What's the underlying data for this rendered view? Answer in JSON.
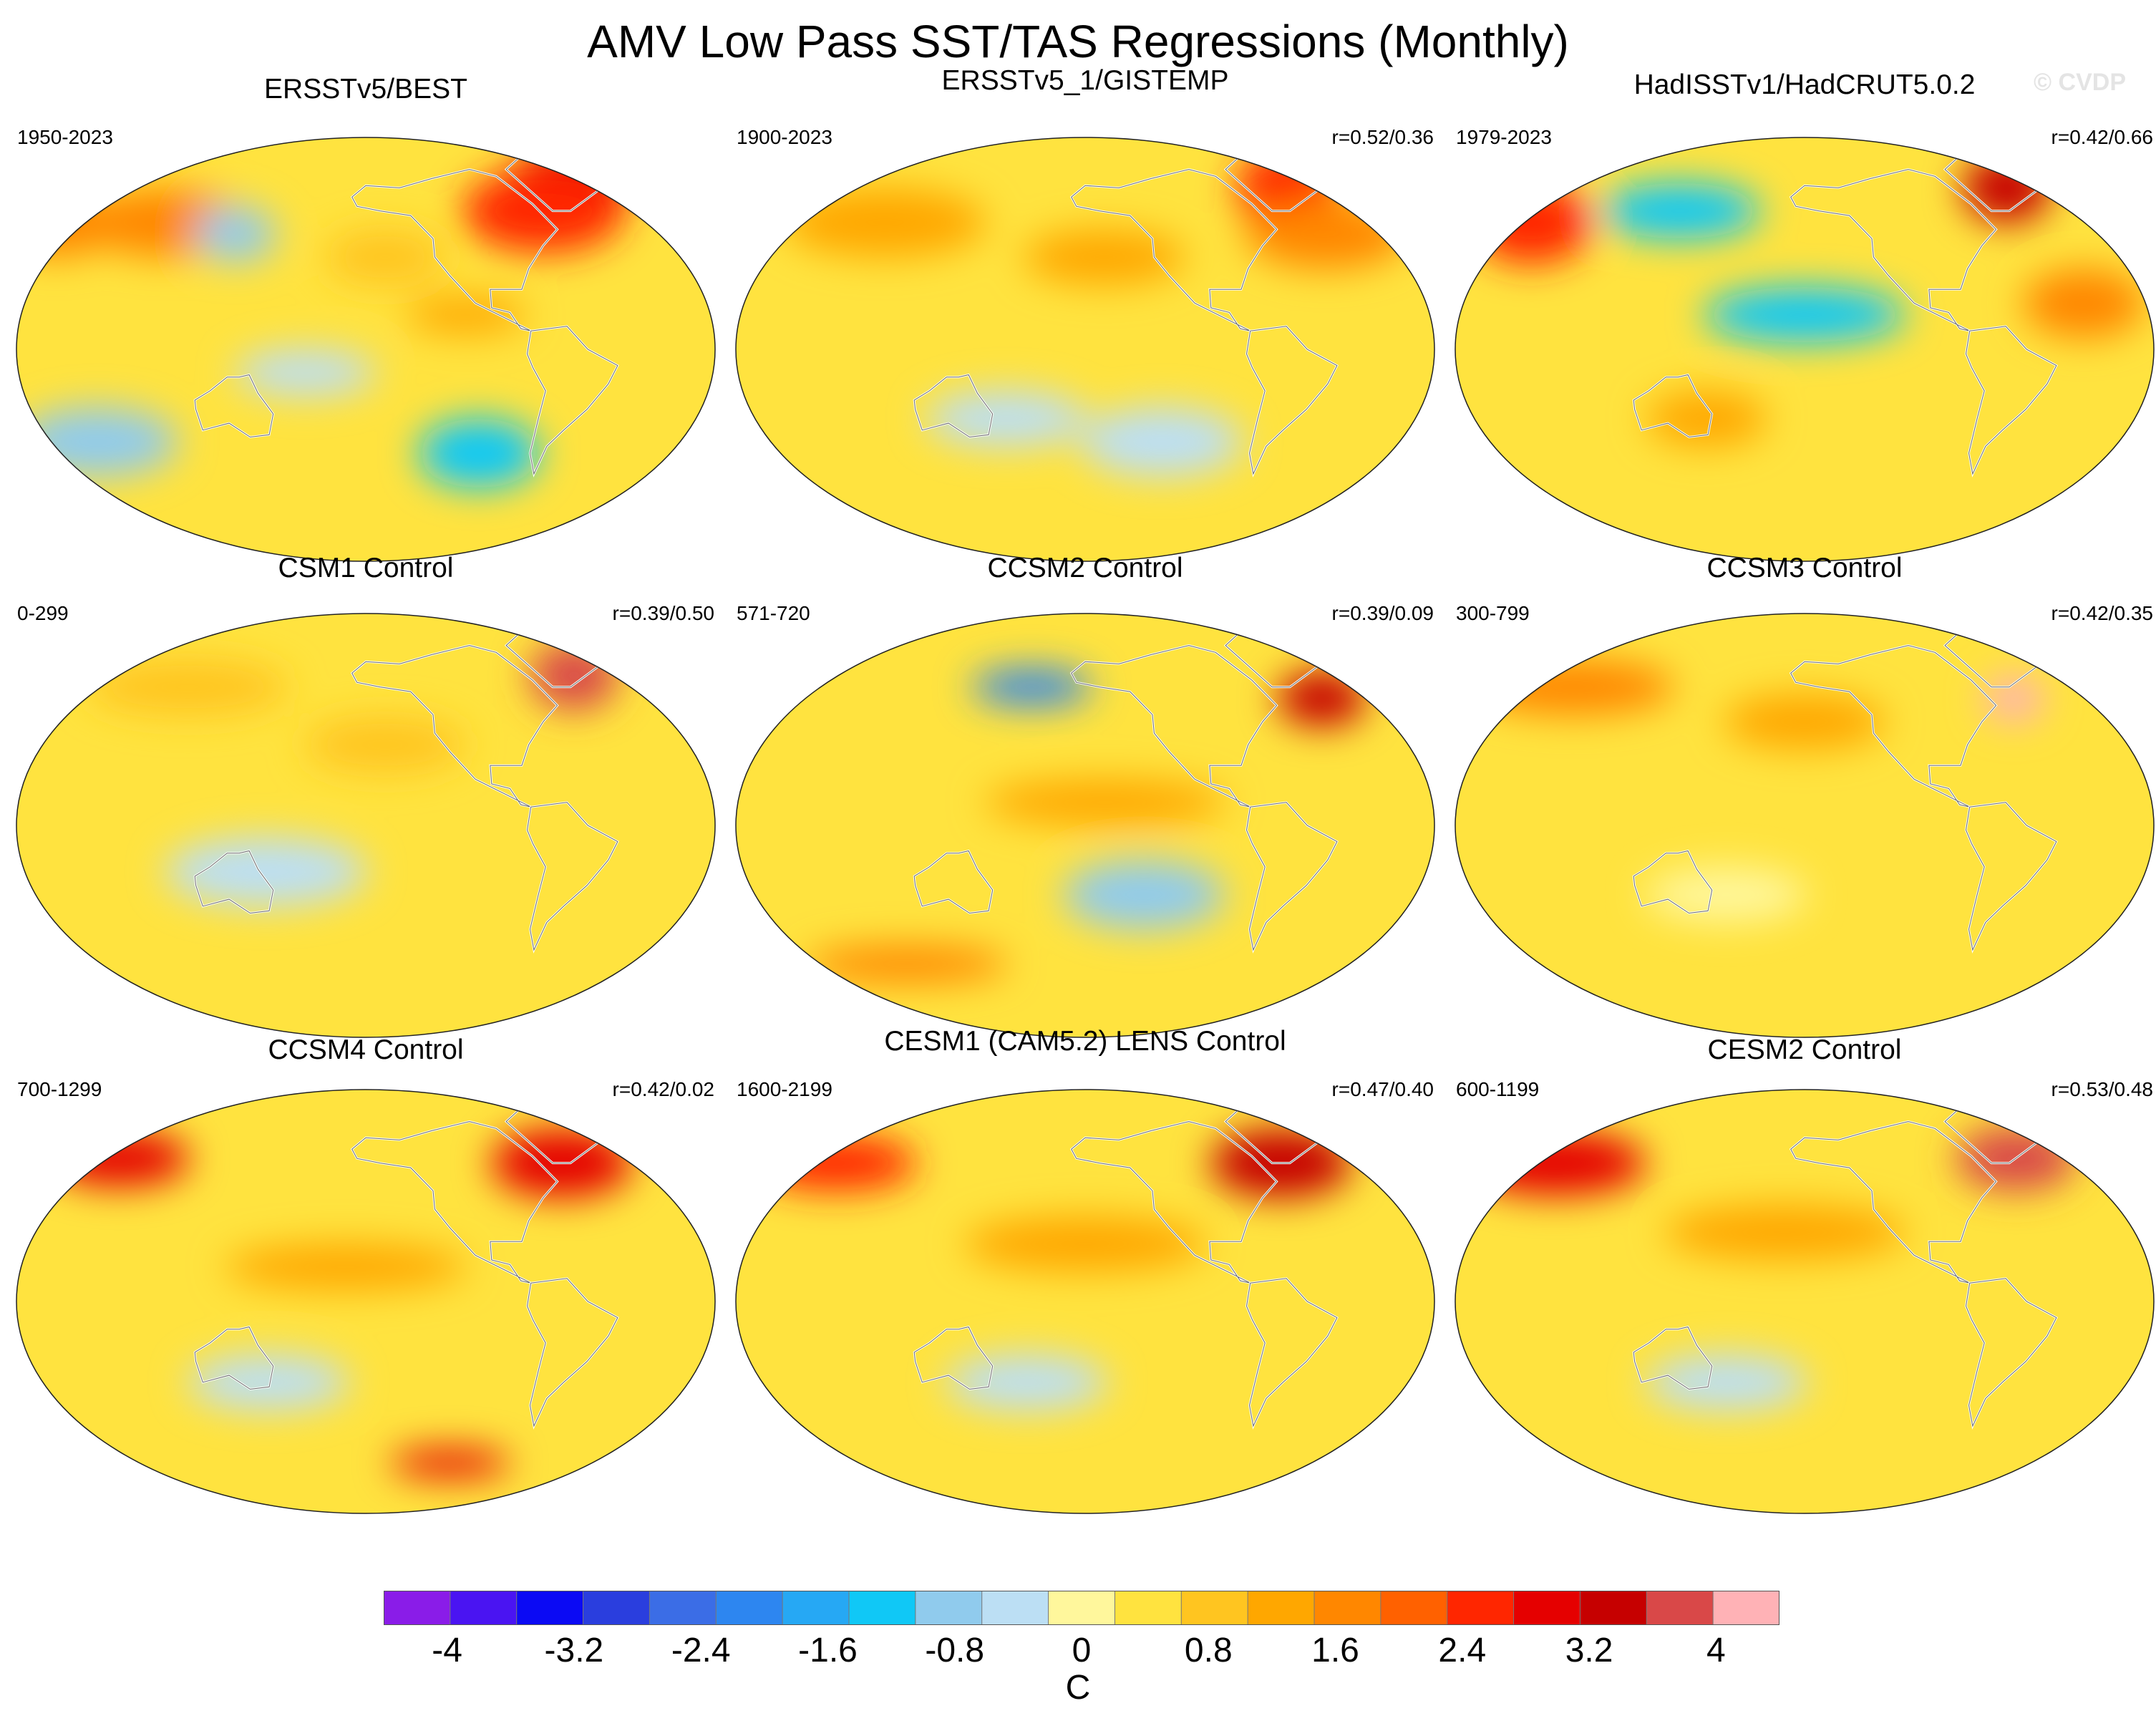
{
  "figure": {
    "title": "AMV Low Pass SST/TAS Regressions (Monthly)",
    "watermark": "© CVDP",
    "colorbar_units": "C"
  },
  "chart_data": {
    "type": "heatmap",
    "title": "AMV Low Pass SST/TAS Regressions (Monthly)",
    "projection": "Robinson (Pacific-centered)",
    "colorbar": {
      "units": "C",
      "levels": [
        -4.4,
        -4,
        -3.6,
        -3.2,
        -2.8,
        -2.4,
        -2,
        -1.6,
        -1.2,
        -0.8,
        -0.4,
        0,
        0.4,
        0.8,
        1.2,
        1.6,
        2,
        2.4,
        2.8,
        3.2,
        3.6,
        4,
        4.4
      ],
      "tick_labels": [
        "-4",
        "-3.2",
        "-2.4",
        "-1.6",
        "-0.8",
        "0",
        "0.8",
        "1.6",
        "2.4",
        "3.2",
        "4"
      ],
      "tick_values": [
        -4,
        -3.2,
        -2.4,
        -1.6,
        -0.8,
        0,
        0.8,
        1.6,
        2.4,
        3.2,
        4
      ],
      "colors": [
        "#8a1ce8",
        "#4a14f2",
        "#0b0af4",
        "#2a3ede",
        "#3b6de6",
        "#2d86f0",
        "#26a8f4",
        "#10c8f6",
        "#90cbed",
        "#bcdff4",
        "#fff79c",
        "#ffe33f",
        "#ffc520",
        "#ffa700",
        "#ff8700",
        "#ff6100",
        "#ff2600",
        "#e50000",
        "#c60000",
        "#d94848",
        "#ffb2b6"
      ]
    },
    "panels": [
      {
        "title": "ERSSTv5/BEST",
        "years": "1950-2023",
        "r": "",
        "features": [
          {
            "lon": -40,
            "lat": 70,
            "value": 2.6,
            "sx": 30,
            "sy": 20
          },
          {
            "lon": -60,
            "lat": 60,
            "value": 2.0,
            "sx": 40,
            "sy": 18
          },
          {
            "lon": 30,
            "lat": 55,
            "value": 1.4,
            "sx": 30,
            "sy": 15
          },
          {
            "lon": 90,
            "lat": 55,
            "value": 1.4,
            "sx": 40,
            "sy": 15
          },
          {
            "lon": 130,
            "lat": 50,
            "value": -0.9,
            "sx": 20,
            "sy": 12
          },
          {
            "lon": -150,
            "lat": 40,
            "value": 0.6,
            "sx": 30,
            "sy": 12
          },
          {
            "lon": -110,
            "lat": 15,
            "value": 0.9,
            "sx": 30,
            "sy": 8
          },
          {
            "lon": -100,
            "lat": -45,
            "value": -1.5,
            "sx": 30,
            "sy": 15
          },
          {
            "lon": 60,
            "lat": -40,
            "value": -1.2,
            "sx": 40,
            "sy": 15
          },
          {
            "lon": 170,
            "lat": -10,
            "value": -0.6,
            "sx": 35,
            "sy": 10
          }
        ]
      },
      {
        "title": "ERSSTv5_1/GISTEMP",
        "years": "1900-2023",
        "r": "r=0.52/0.36",
        "features": [
          {
            "lon": -40,
            "lat": 70,
            "value": 2.2,
            "sx": 25,
            "sy": 18
          },
          {
            "lon": -30,
            "lat": 50,
            "value": 1.2,
            "sx": 40,
            "sy": 15
          },
          {
            "lon": 90,
            "lat": 55,
            "value": 1.0,
            "sx": 50,
            "sy": 15
          },
          {
            "lon": -150,
            "lat": 40,
            "value": 0.8,
            "sx": 40,
            "sy": 12
          },
          {
            "lon": -120,
            "lat": -40,
            "value": -0.7,
            "sx": 40,
            "sy": 15
          },
          {
            "lon": 160,
            "lat": -30,
            "value": -0.5,
            "sx": 40,
            "sy": 12
          }
        ]
      },
      {
        "title": "HadISSTv1/HadCRUT5.0.2",
        "years": "1979-2023",
        "r": "r=0.42/0.66",
        "features": [
          {
            "lon": -40,
            "lat": 70,
            "value": 3.0,
            "sx": 22,
            "sy": 15
          },
          {
            "lon": 50,
            "lat": 55,
            "value": 2.2,
            "sx": 30,
            "sy": 18
          },
          {
            "lon": 130,
            "lat": 60,
            "value": -1.4,
            "sx": 40,
            "sy": 12
          },
          {
            "lon": -160,
            "lat": 15,
            "value": -1.3,
            "sx": 50,
            "sy": 12
          },
          {
            "lon": -20,
            "lat": 20,
            "value": 1.4,
            "sx": 30,
            "sy": 15
          },
          {
            "lon": 150,
            "lat": -30,
            "value": 0.8,
            "sx": 30,
            "sy": 12
          }
        ]
      },
      {
        "title": "CSM1 Control",
        "years": "0-299",
        "r": "r=0.39/0.50",
        "features": [
          {
            "lon": -40,
            "lat": 65,
            "value": 3.4,
            "sx": 22,
            "sy": 15
          },
          {
            "lon": -150,
            "lat": 35,
            "value": 0.6,
            "sx": 40,
            "sy": 12
          },
          {
            "lon": 150,
            "lat": -20,
            "value": -0.5,
            "sx": 50,
            "sy": 15
          },
          {
            "lon": 100,
            "lat": 60,
            "value": 0.5,
            "sx": 50,
            "sy": 12
          }
        ]
      },
      {
        "title": "CCSM2 Control",
        "years": "571-720",
        "r": "r=0.39/0.09",
        "features": [
          {
            "lon": -30,
            "lat": 55,
            "value": 3.0,
            "sx": 22,
            "sy": 12
          },
          {
            "lon": 170,
            "lat": 60,
            "value": -2.4,
            "sx": 30,
            "sy": 8
          },
          {
            "lon": -150,
            "lat": 10,
            "value": 0.9,
            "sx": 60,
            "sy": 10
          },
          {
            "lon": -130,
            "lat": -30,
            "value": -1.1,
            "sx": 40,
            "sy": 15
          },
          {
            "lon": 100,
            "lat": -60,
            "value": 1.2,
            "sx": 50,
            "sy": 8
          }
        ]
      },
      {
        "title": "CCSM3 Control",
        "years": "300-799",
        "r": "r=0.42/0.35",
        "features": [
          {
            "lon": -45,
            "lat": 55,
            "value": 3.6,
            "sx": 15,
            "sy": 10
          },
          {
            "lon": 70,
            "lat": 60,
            "value": 1.2,
            "sx": 50,
            "sy": 12
          },
          {
            "lon": -160,
            "lat": 45,
            "value": 0.9,
            "sx": 40,
            "sy": 12
          },
          {
            "lon": 160,
            "lat": -30,
            "value": -0.4,
            "sx": 40,
            "sy": 12
          }
        ]
      },
      {
        "title": "CCSM4 Control",
        "years": "700-1299",
        "r": "r=0.42/0.02",
        "features": [
          {
            "lon": -50,
            "lat": 60,
            "value": 2.6,
            "sx": 35,
            "sy": 15
          },
          {
            "lon": 60,
            "lat": 62,
            "value": 2.6,
            "sx": 35,
            "sy": 12
          },
          {
            "lon": -170,
            "lat": 15,
            "value": 1.0,
            "sx": 60,
            "sy": 10
          },
          {
            "lon": 150,
            "lat": -35,
            "value": -0.6,
            "sx": 40,
            "sy": 12
          },
          {
            "lon": -110,
            "lat": -70,
            "value": 2.6,
            "sx": 30,
            "sy": 6
          }
        ]
      },
      {
        "title": "CESM1 (CAM5.2) LENS Control",
        "years": "1600-2199",
        "r": "r=0.47/0.40",
        "features": [
          {
            "lon": -50,
            "lat": 60,
            "value": 3.0,
            "sx": 35,
            "sy": 15
          },
          {
            "lon": 60,
            "lat": 60,
            "value": 2.0,
            "sx": 40,
            "sy": 12
          },
          {
            "lon": -160,
            "lat": 25,
            "value": 1.0,
            "sx": 60,
            "sy": 12
          },
          {
            "lon": 170,
            "lat": -35,
            "value": -0.5,
            "sx": 40,
            "sy": 12
          }
        ]
      },
      {
        "title": "CESM2 Control",
        "years": "600-1199",
        "r": "r=0.53/0.48",
        "features": [
          {
            "lon": -40,
            "lat": 62,
            "value": 3.2,
            "sx": 30,
            "sy": 14
          },
          {
            "lon": 60,
            "lat": 60,
            "value": 2.6,
            "sx": 45,
            "sy": 14
          },
          {
            "lon": -170,
            "lat": 30,
            "value": 1.0,
            "sx": 60,
            "sy": 12
          },
          {
            "lon": 160,
            "lat": -35,
            "value": -0.5,
            "sx": 40,
            "sy": 12
          }
        ]
      }
    ]
  }
}
